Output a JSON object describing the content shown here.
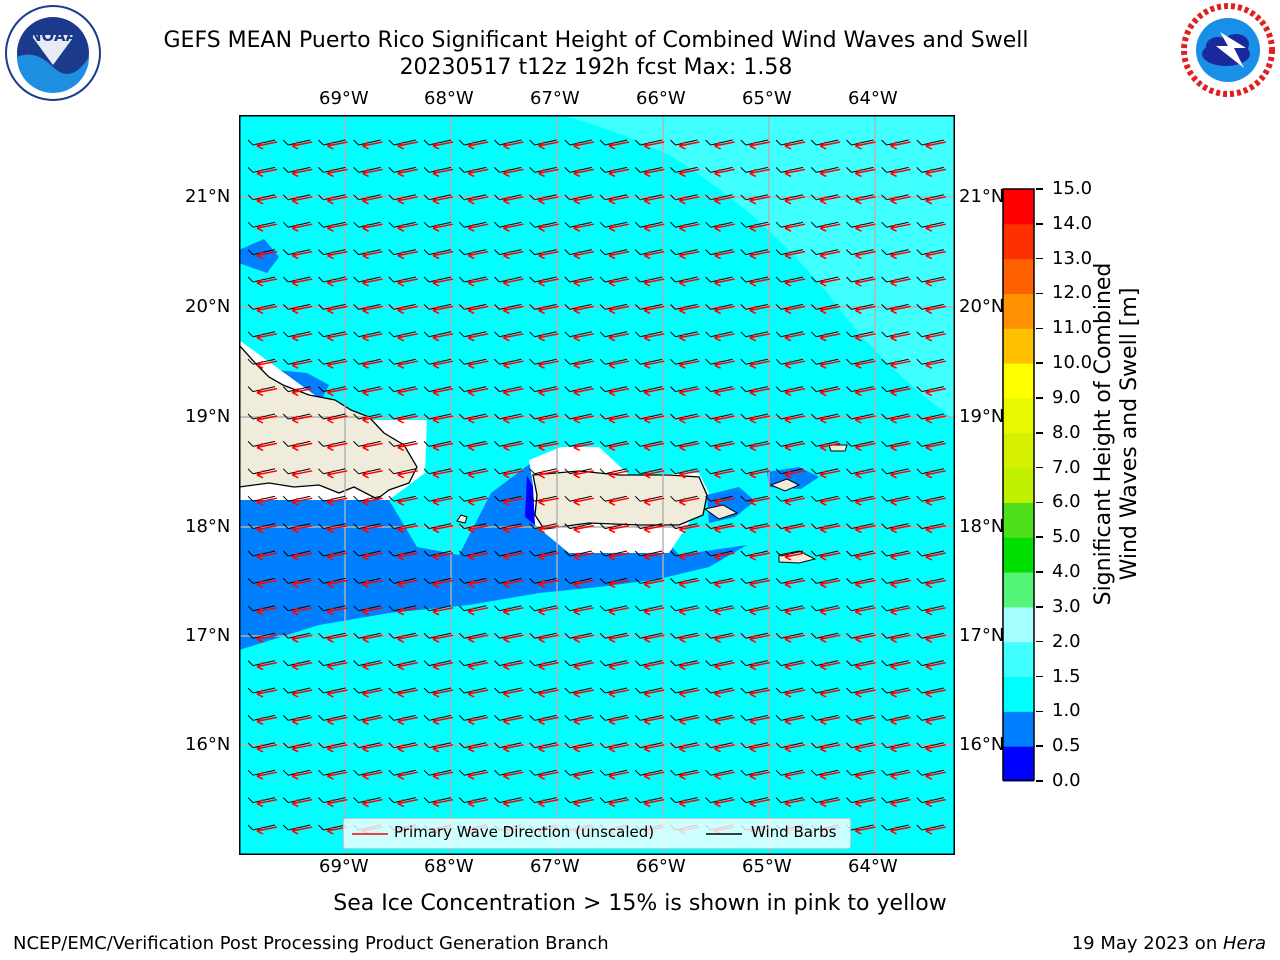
{
  "header": {
    "title_line1": "GEFS MEAN Puerto Rico Significant Height of Combined Wind Waves and Swell",
    "title_line2": "20230517 t12z 192h fcst   Max: 1.58"
  },
  "logos": {
    "left": {
      "icon": "noaa-logo-icon",
      "text": "NOAA",
      "ring_text": "NATIONAL OCEANIC AND ATMOSPHERIC ADMINISTRATION · U.S. DEPARTMENT OF COMMERCE"
    },
    "right": {
      "icon": "nws-logo-icon",
      "ring_text": "NATIONAL WEATHER SERVICE"
    }
  },
  "map": {
    "lon_labels": [
      "69°W",
      "68°W",
      "67°W",
      "66°W",
      "65°W",
      "64°W"
    ],
    "lat_labels": [
      "21°N",
      "20°N",
      "19°N",
      "18°N",
      "17°N",
      "16°N"
    ],
    "legend": {
      "wave_direction": "Primary Wave Direction (unscaled)",
      "wind_barbs": "Wind Barbs"
    },
    "colors": {
      "ocean": "#00ffff",
      "land": "#efecdc",
      "arrow": "#ff0000",
      "barb": "#000000"
    }
  },
  "colorbar": {
    "label_line1": "Significant Height of Combined",
    "label_line2": "Wind Waves and Swell [m]",
    "tick_labels": [
      "15.0",
      "14.0",
      "13.0",
      "12.0",
      "11.0",
      "10.0",
      "9.0",
      "8.0",
      "7.0",
      "6.0",
      "5.0",
      "4.0",
      "3.0",
      "2.0",
      "1.5",
      "1.0",
      "0.5",
      "0.0"
    ],
    "bins": [
      {
        "range": "0.0-0.5",
        "color": "#0000ff"
      },
      {
        "range": "0.5-1.0",
        "color": "#0080ff"
      },
      {
        "range": "1.0-1.5",
        "color": "#00ffff"
      },
      {
        "range": "1.5-2.0",
        "color": "#40ffff"
      },
      {
        "range": "2.0-3.0",
        "color": "#a8ffff"
      },
      {
        "range": "3.0-4.0",
        "color": "#55f57a"
      },
      {
        "range": "4.0-5.0",
        "color": "#00e000"
      },
      {
        "range": "5.0-6.0",
        "color": "#4ee01a"
      },
      {
        "range": "6.0-7.0",
        "color": "#c0f000"
      },
      {
        "range": "7.0-8.0",
        "color": "#d4f000"
      },
      {
        "range": "8.0-9.0",
        "color": "#e8f800"
      },
      {
        "range": "9.0-10.0",
        "color": "#ffff00"
      },
      {
        "range": "10.0-11.0",
        "color": "#ffc000"
      },
      {
        "range": "11.0-12.0",
        "color": "#ff9000"
      },
      {
        "range": "12.0-13.0",
        "color": "#ff6000"
      },
      {
        "range": "13.0-14.0",
        "color": "#ff3000"
      },
      {
        "range": "14.0-15.0",
        "color": "#ff0000"
      }
    ]
  },
  "caption": "Sea Ice Concentration > 15% is shown in pink to yellow",
  "footer": {
    "left": "NCEP/EMC/Verification Post Processing Product Generation Branch",
    "date": "19 May 2023 on ",
    "machine": "Hera"
  }
}
